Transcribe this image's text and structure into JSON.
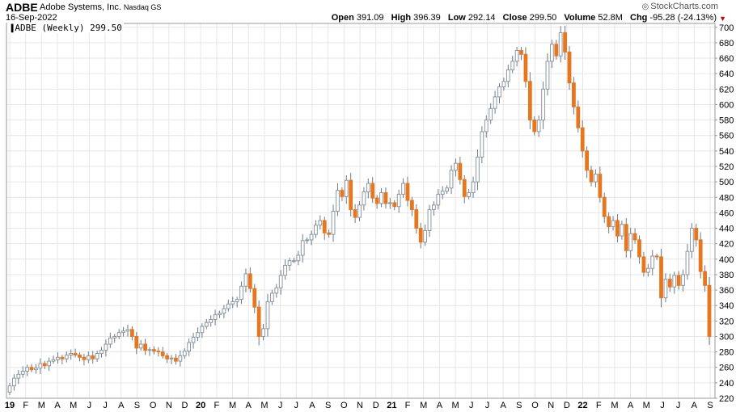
{
  "header": {
    "symbol": "ADBE",
    "company": "Adobe Systems, Inc.",
    "exchange": "Nasdaq GS",
    "date": "16-Sep-2022",
    "brand": "StockCharts.com",
    "brand_icon": "stockcharts-logo-icon",
    "quote": {
      "open_label": "Open",
      "open": "391.09",
      "high_label": "High",
      "high": "396.39",
      "low_label": "Low",
      "low": "292.14",
      "close_label": "Close",
      "close": "299.50",
      "volume_label": "Volume",
      "volume": "52.8M",
      "chg_label": "Chg",
      "chg": "-95.28 (-24.13%)",
      "chg_arrow": "▼"
    }
  },
  "legend": {
    "icon": "candlestick-icon",
    "text": "ADBE (Weekly) 299.50"
  },
  "colors": {
    "up": "#8c97a2",
    "down": "#e8761c",
    "wick": "#6f7a85",
    "grid": "#e6e6e6",
    "axis": "#000000",
    "frame": "#999999"
  },
  "chart_data": {
    "type": "candlestick",
    "period": "weekly",
    "grid": true,
    "y_axis_side": "right",
    "ylim": [
      220,
      705
    ],
    "y_ticks": [
      220,
      240,
      260,
      280,
      300,
      320,
      340,
      360,
      380,
      400,
      420,
      440,
      460,
      480,
      500,
      520,
      540,
      560,
      580,
      600,
      620,
      640,
      660,
      680,
      700
    ],
    "x_ticks": [
      "19",
      "F",
      "M",
      "A",
      "M",
      "J",
      "J",
      "A",
      "S",
      "O",
      "N",
      "D",
      "20",
      "F",
      "M",
      "A",
      "M",
      "J",
      "J",
      "A",
      "S",
      "O",
      "N",
      "D",
      "21",
      "F",
      "M",
      "A",
      "M",
      "J",
      "J",
      "A",
      "S",
      "O",
      "N",
      "D",
      "22",
      "F",
      "M",
      "A",
      "M",
      "J",
      "J",
      "A",
      "S"
    ],
    "year_ticks": [
      "19",
      "20",
      "21",
      "22"
    ],
    "closes": [
      236,
      246,
      251,
      255,
      260,
      257,
      259,
      265,
      262,
      268,
      270,
      273,
      271,
      276,
      278,
      276,
      273,
      270,
      275,
      271,
      278,
      282,
      290,
      298,
      300,
      305,
      307,
      309,
      300,
      285,
      290,
      282,
      283,
      281,
      280,
      275,
      271,
      272,
      268,
      275,
      281,
      292,
      299,
      305,
      313,
      318,
      322,
      328,
      330,
      336,
      342,
      345,
      348,
      365,
      381,
      362,
      338,
      300,
      310,
      345,
      356,
      363,
      379,
      392,
      398,
      398,
      405,
      424,
      425,
      432,
      444,
      450,
      434,
      432,
      462,
      489,
      481,
      502,
      464,
      454,
      470,
      487,
      498,
      479,
      472,
      486,
      472,
      473,
      468,
      484,
      498,
      476,
      464,
      440,
      422,
      437,
      464,
      470,
      484,
      488,
      492,
      515,
      524,
      503,
      481,
      486,
      500,
      532,
      565,
      580,
      595,
      610,
      623,
      630,
      645,
      656,
      670,
      665,
      630,
      580,
      565,
      580,
      620,
      656,
      678,
      663,
      693,
      668,
      628,
      597,
      570,
      540,
      515,
      500,
      510,
      480,
      455,
      442,
      450,
      430,
      445,
      411,
      433,
      425,
      403,
      383,
      388,
      404,
      403,
      350,
      374,
      364,
      379,
      366,
      380,
      410,
      440,
      425,
      384,
      366,
      300
    ]
  }
}
